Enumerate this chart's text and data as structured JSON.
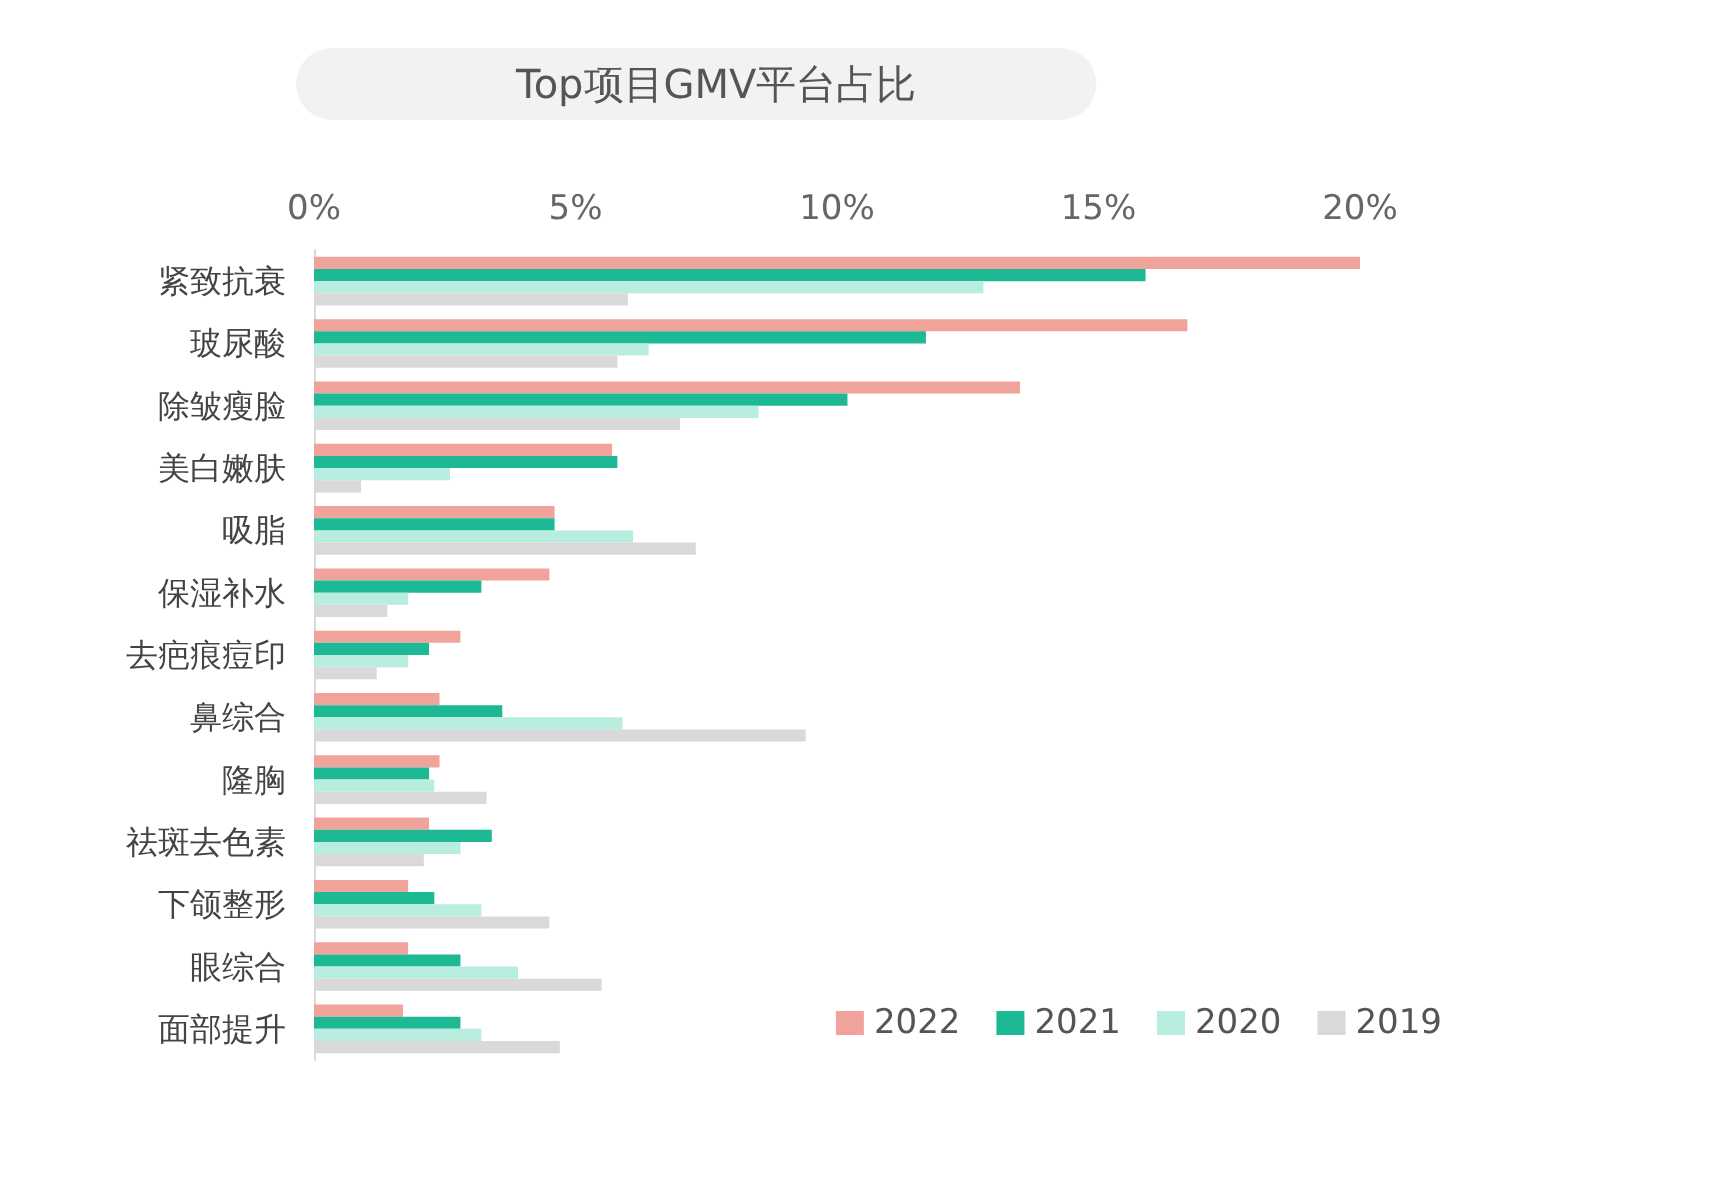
{
  "chart_data": {
    "type": "bar",
    "orientation": "horizontal",
    "title": "Top项目GMV平台占比",
    "categories": [
      "紧致抗衰",
      "玻尿酸",
      "除皱瘦脸",
      "美白嫩肤",
      "吸脂",
      "保湿补水",
      "去疤痕痘印",
      "鼻综合",
      "隆胸",
      "祛斑去色素",
      "下颌整形",
      "眼综合",
      "面部提升"
    ],
    "series": [
      {
        "name": "2022",
        "color": "#f0a39a",
        "values": [
          20.0,
          16.7,
          13.5,
          5.7,
          4.6,
          4.5,
          2.8,
          2.4,
          2.4,
          2.2,
          1.8,
          1.8,
          1.7
        ]
      },
      {
        "name": "2021",
        "color": "#1db894",
        "values": [
          15.9,
          11.7,
          10.2,
          5.8,
          4.6,
          3.2,
          2.2,
          3.6,
          2.2,
          3.4,
          2.3,
          2.8,
          2.8
        ]
      },
      {
        "name": "2020",
        "color": "#b8ede0",
        "values": [
          12.8,
          6.4,
          8.5,
          2.6,
          6.1,
          1.8,
          1.8,
          5.9,
          2.3,
          2.8,
          3.2,
          3.9,
          3.2
        ]
      },
      {
        "name": "2019",
        "color": "#d9d9d9",
        "values": [
          6.0,
          5.8,
          7.0,
          0.9,
          7.3,
          1.4,
          1.2,
          9.4,
          3.3,
          2.1,
          4.5,
          5.5,
          4.7
        ]
      }
    ],
    "xlim": [
      0,
      20
    ],
    "xticks": [
      {
        "value": 0,
        "label": "0%"
      },
      {
        "value": 5,
        "label": "5%"
      },
      {
        "value": 10,
        "label": "10%"
      },
      {
        "value": 15,
        "label": "15%"
      },
      {
        "value": 20,
        "label": "20%"
      }
    ],
    "grid": false,
    "legend": "bottom right"
  }
}
